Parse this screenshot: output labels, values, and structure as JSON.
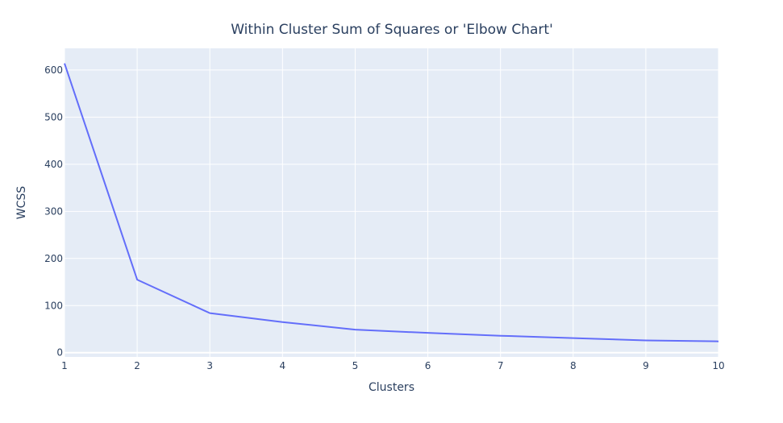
{
  "chart_data": {
    "type": "line",
    "title": "Within Cluster Sum of Squares or 'Elbow Chart'",
    "xlabel": "Clusters",
    "ylabel": "WCSS",
    "x": [
      1,
      2,
      3,
      4,
      5,
      6,
      7,
      8,
      9,
      10
    ],
    "series": [
      {
        "values": [
          614,
          155,
          84,
          65,
          49,
          42,
          36,
          31,
          26,
          24
        ]
      }
    ],
    "xlim": [
      1,
      10
    ],
    "ylim": [
      -9,
      646
    ],
    "xticks": [
      1,
      2,
      3,
      4,
      5,
      6,
      7,
      8,
      9,
      10
    ],
    "yticks": [
      0,
      100,
      200,
      300,
      400,
      500,
      600
    ],
    "grid": true,
    "colors": {
      "plot_background": "#e5ecf6",
      "grid": "#ffffff",
      "line": "#636efa",
      "text": "#2a3f5f"
    }
  }
}
